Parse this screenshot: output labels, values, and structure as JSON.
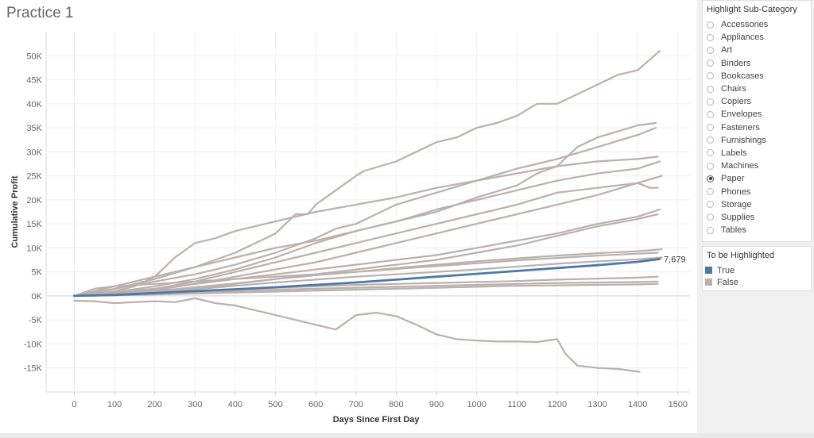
{
  "dashboard": {
    "title": "Practice 1"
  },
  "filter": {
    "title": "Highlight Sub-Category",
    "selected": "Paper",
    "options": [
      "Accessories",
      "Appliances",
      "Art",
      "Binders",
      "Bookcases",
      "Chairs",
      "Copiers",
      "Envelopes",
      "Fasteners",
      "Furnishings",
      "Labels",
      "Machines",
      "Paper",
      "Phones",
      "Storage",
      "Supplies",
      "Tables"
    ]
  },
  "legend": {
    "title": "To be Highlighted",
    "items": [
      {
        "label": "True",
        "color": "#4e79a7"
      },
      {
        "label": "False",
        "color": "#bab0ac"
      }
    ]
  },
  "chart_data": {
    "type": "line",
    "title": "",
    "xlabel": "Days Since First Day",
    "ylabel": "Cumulative Profit",
    "xlim": [
      -70,
      1530
    ],
    "ylim": [
      -20000,
      55000
    ],
    "x_ticks": [
      0,
      100,
      200,
      300,
      400,
      500,
      600,
      700,
      800,
      900,
      1000,
      1100,
      1200,
      1300,
      1400,
      1500
    ],
    "x_tick_labels": [
      "0",
      "100",
      "200",
      "300",
      "400",
      "500",
      "600",
      "700",
      "800",
      "900",
      "1000",
      "1100",
      "1200",
      "1300",
      "1400",
      "1500"
    ],
    "y_ticks": [
      -15000,
      -10000,
      -5000,
      0,
      5000,
      10000,
      15000,
      20000,
      25000,
      30000,
      35000,
      40000,
      45000,
      50000
    ],
    "y_tick_labels": [
      "-15K",
      "-10K",
      "-5K",
      "0K",
      "5K",
      "10K",
      "15K",
      "20K",
      "25K",
      "30K",
      "35K",
      "40K",
      "45K",
      "50K"
    ],
    "grid": true,
    "highlight_color": "#4e79a7",
    "other_color": "#bab0ac",
    "end_label": "7,679",
    "series": [
      {
        "highlighted": false,
        "x": [
          0,
          100,
          200,
          300,
          400,
          500,
          550,
          580,
          600,
          650,
          700,
          720,
          800,
          850,
          900,
          950,
          1000,
          1050,
          1100,
          1150,
          1200,
          1250,
          1300,
          1350,
          1400,
          1455
        ],
        "y": [
          0,
          1500,
          3500,
          6000,
          9000,
          13000,
          17000,
          17000,
          19000,
          22000,
          25000,
          26000,
          28000,
          30000,
          32000,
          33000,
          35000,
          36000,
          37500,
          40000,
          40000,
          42000,
          44000,
          46000,
          47000,
          51000
        ]
      },
      {
        "highlighted": false,
        "x": [
          0,
          100,
          200,
          300,
          350,
          400,
          500,
          600,
          700,
          800,
          900,
          950,
          1000,
          1100,
          1150,
          1200,
          1250,
          1300,
          1400,
          1445
        ],
        "y": [
          0,
          2000,
          4000,
          6000,
          7000,
          8000,
          10000,
          11500,
          13500,
          15500,
          17500,
          19000,
          20500,
          23000,
          25500,
          27000,
          31000,
          33000,
          35500,
          36000
        ]
      },
      {
        "highlighted": false,
        "x": [
          0,
          100,
          200,
          300,
          400,
          500,
          600,
          650,
          700,
          800,
          900,
          1000,
          1100,
          1200,
          1300,
          1400,
          1445
        ],
        "y": [
          0,
          1500,
          3000,
          4500,
          6500,
          9000,
          12000,
          14000,
          15000,
          19000,
          21500,
          24000,
          26500,
          28500,
          31000,
          33500,
          35000
        ]
      },
      {
        "highlighted": false,
        "x": [
          0,
          100,
          150,
          200,
          250,
          300,
          350,
          400,
          500,
          600,
          700,
          800,
          900,
          1000,
          1100,
          1200,
          1300,
          1400,
          1450
        ],
        "y": [
          0,
          1000,
          2000,
          4000,
          8000,
          11000,
          12000,
          13500,
          15500,
          17500,
          19000,
          20500,
          22500,
          24000,
          25500,
          27000,
          28000,
          28500,
          29000
        ]
      },
      {
        "highlighted": false,
        "x": [
          0,
          100,
          200,
          300,
          400,
          500,
          600,
          700,
          800,
          900,
          1000,
          1100,
          1200,
          1300,
          1400,
          1455
        ],
        "y": [
          0,
          800,
          2000,
          3500,
          5500,
          8000,
          11000,
          13500,
          15500,
          18000,
          20000,
          22000,
          24000,
          25500,
          26500,
          28000
        ]
      },
      {
        "highlighted": false,
        "x": [
          0,
          100,
          200,
          300,
          400,
          500,
          600,
          700,
          800,
          900,
          1000,
          1100,
          1200,
          1300,
          1400,
          1430,
          1450
        ],
        "y": [
          0,
          600,
          1500,
          3000,
          5000,
          7000,
          9000,
          11000,
          13000,
          15000,
          17000,
          19000,
          21500,
          22500,
          23500,
          22500,
          22500
        ]
      },
      {
        "highlighted": false,
        "x": [
          0,
          100,
          200,
          300,
          400,
          500,
          600,
          700,
          800,
          900,
          1000,
          1100,
          1200,
          1300,
          1400,
          1460
        ],
        "y": [
          0,
          700,
          1500,
          2500,
          4000,
          5500,
          7000,
          9000,
          11000,
          13000,
          15000,
          17000,
          19000,
          21000,
          23500,
          25000
        ]
      },
      {
        "highlighted": false,
        "x": [
          0,
          100,
          200,
          300,
          400,
          500,
          600,
          700,
          800,
          900,
          1000,
          1100,
          1200,
          1300,
          1400,
          1455
        ],
        "y": [
          0,
          400,
          1200,
          2500,
          3500,
          4500,
          5500,
          6500,
          7500,
          8500,
          10000,
          11500,
          13000,
          15000,
          16500,
          18000
        ]
      },
      {
        "highlighted": false,
        "x": [
          0,
          100,
          200,
          300,
          400,
          500,
          600,
          700,
          800,
          900,
          1000,
          1100,
          1200,
          1300,
          1400,
          1450
        ],
        "y": [
          0,
          300,
          800,
          1500,
          2500,
          3500,
          4500,
          5500,
          6500,
          7500,
          9000,
          10500,
          12500,
          14500,
          16000,
          17000
        ]
      },
      {
        "highlighted": false,
        "x": [
          0,
          100,
          200,
          300,
          400,
          500,
          600,
          700,
          800,
          900,
          1000,
          1100,
          1200,
          1300,
          1400,
          1460
        ],
        "y": [
          0,
          400,
          1000,
          1800,
          2600,
          3500,
          4300,
          5000,
          5800,
          6500,
          7200,
          7800,
          8400,
          8900,
          9300,
          9700
        ]
      },
      {
        "highlighted": false,
        "x": [
          0,
          100,
          200,
          300,
          400,
          500,
          600,
          700,
          800,
          900,
          1000,
          1100,
          1200,
          1300,
          1400,
          1460
        ],
        "y": [
          0,
          300,
          800,
          1400,
          2100,
          2800,
          3400,
          4000,
          4500,
          5000,
          5500,
          6100,
          6700,
          7200,
          7600,
          8000
        ]
      },
      {
        "highlighted": false,
        "x": [
          0,
          100,
          200,
          300,
          400,
          500,
          600,
          700,
          800,
          900,
          1000,
          1100,
          1200,
          1300,
          1400,
          1450
        ],
        "y": [
          0,
          200,
          500,
          900,
          1300,
          1700,
          2000,
          2300,
          2500,
          2700,
          2900,
          3100,
          3400,
          3600,
          3800,
          4000
        ]
      },
      {
        "highlighted": false,
        "x": [
          0,
          100,
          200,
          300,
          400,
          500,
          600,
          700,
          800,
          900,
          1000,
          1100,
          1200,
          1300,
          1400,
          1450
        ],
        "y": [
          0,
          150,
          400,
          700,
          1000,
          1300,
          1500,
          1700,
          1900,
          2100,
          2300,
          2500,
          2700,
          2800,
          2900,
          3000
        ]
      },
      {
        "highlighted": false,
        "x": [
          0,
          100,
          200,
          300,
          400,
          500,
          600,
          700,
          800,
          900,
          1000,
          1100,
          1200,
          1300,
          1400,
          1450
        ],
        "y": [
          0,
          100,
          300,
          500,
          700,
          900,
          1100,
          1300,
          1500,
          1700,
          1900,
          2100,
          2200,
          2300,
          2400,
          2500
        ]
      },
      {
        "highlighted": false,
        "x": [
          0,
          50,
          100,
          200,
          300,
          400,
          500,
          600,
          700,
          800,
          900,
          1000,
          1100,
          1200,
          1300,
          1400,
          1450
        ],
        "y": [
          0,
          1500,
          2000,
          2500,
          3000,
          3500,
          4000,
          4500,
          5000,
          5600,
          6200,
          6800,
          7400,
          7900,
          8400,
          8800,
          9000
        ]
      },
      {
        "highlighted": false,
        "x": [
          0,
          50,
          100,
          200,
          250,
          300,
          350,
          400,
          450,
          500,
          550,
          600,
          650,
          700,
          750,
          800,
          850,
          900,
          950,
          1000,
          1050,
          1100,
          1150,
          1200,
          1220,
          1250,
          1300,
          1350,
          1405
        ],
        "y": [
          -1000,
          -1100,
          -1500,
          -1100,
          -1300,
          -500,
          -1500,
          -2000,
          -3000,
          -4000,
          -5000,
          -6000,
          -7000,
          -4000,
          -3500,
          -4200,
          -6000,
          -8000,
          -9000,
          -9300,
          -9500,
          -9500,
          -9600,
          -9000,
          -12000,
          -14500,
          -15000,
          -15200,
          -15800
        ]
      },
      {
        "highlighted": true,
        "x": [
          0,
          100,
          200,
          300,
          400,
          500,
          600,
          700,
          800,
          900,
          1000,
          1100,
          1200,
          1300,
          1400,
          1455
        ],
        "y": [
          0,
          200,
          600,
          1000,
          1400,
          1800,
          2300,
          2800,
          3400,
          4000,
          4600,
          5200,
          5800,
          6400,
          7100,
          7679
        ]
      }
    ]
  }
}
